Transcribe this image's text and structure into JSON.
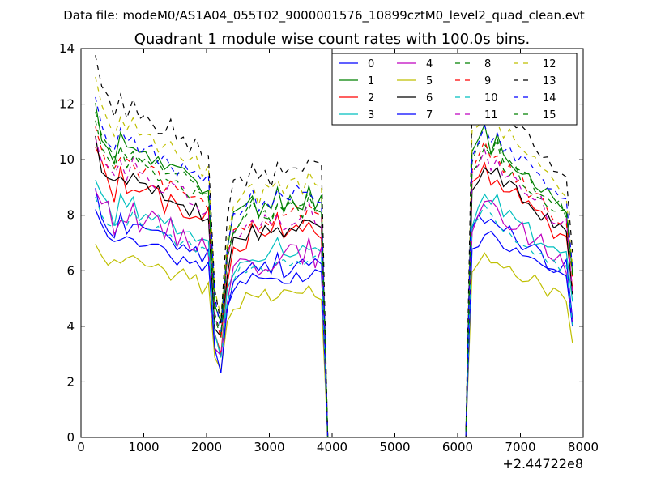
{
  "chart_data": {
    "type": "line",
    "suptitle": "Data file: modeM0/AS1A04_055T02_9000001576_10899cztM0_level2_quad_clean.evt",
    "title": "Quadrant 1 module wise count rates with 100.0s bins.",
    "xlabel": "",
    "ylabel": "",
    "x_offset_label": "+2.44722e8",
    "xlim": [
      0,
      8000
    ],
    "ylim": [
      0,
      14
    ],
    "x_ticks": [
      0,
      1000,
      2000,
      3000,
      4000,
      5000,
      6000,
      7000,
      8000
    ],
    "y_ticks": [
      0,
      2,
      4,
      6,
      8,
      10,
      12,
      14
    ],
    "legend_position": "top-right",
    "x": [
      230,
      330,
      430,
      530,
      630,
      730,
      830,
      930,
      1030,
      1130,
      1230,
      1330,
      1430,
      1530,
      1630,
      1730,
      1830,
      1930,
      2030,
      2130,
      2230,
      2330,
      2430,
      2530,
      2630,
      2730,
      2830,
      2930,
      3030,
      3130,
      3230,
      3330,
      3430,
      3530,
      3630,
      3730,
      3830,
      3930,
      4030,
      4130,
      4230,
      4330,
      4430,
      4530,
      4630,
      4730,
      4830,
      4930,
      5030,
      5130,
      5230,
      5330,
      5430,
      5530,
      5630,
      5730,
      5830,
      5930,
      6030,
      6130,
      6230,
      6330,
      6430,
      6530,
      6630,
      6730,
      6830,
      6930,
      7030,
      7130,
      7230,
      7330,
      7430,
      7530,
      7630,
      7730,
      7830
    ],
    "base_profile": [
      10.6,
      9.8,
      9.4,
      9.0,
      9.6,
      9.2,
      9.5,
      9.1,
      9.3,
      9.0,
      8.8,
      8.6,
      8.7,
      8.4,
      8.5,
      8.2,
      8.3,
      7.9,
      8.0,
      4.2,
      3.4,
      6.0,
      7.0,
      7.2,
      7.3,
      7.6,
      7.2,
      7.5,
      7.3,
      7.8,
      7.4,
      7.6,
      7.7,
      7.5,
      7.9,
      7.6,
      7.5,
      0.0,
      0.0,
      0.0,
      0.0,
      0.0,
      0.0,
      0.0,
      0.0,
      0.0,
      0.0,
      0.0,
      0.0,
      0.0,
      0.0,
      0.0,
      0.0,
      0.0,
      0.0,
      0.0,
      0.0,
      0.0,
      0.0,
      0.0,
      9.0,
      9.4,
      9.8,
      9.4,
      9.6,
      9.2,
      9.0,
      8.8,
      8.6,
      8.4,
      8.2,
      8.1,
      7.8,
      7.6,
      7.5,
      7.4,
      5.2
    ],
    "series": [
      {
        "name": "0",
        "color": "#0000ff",
        "style": "solid",
        "scale": 0.82,
        "jitter": 0.35,
        "seed": 11
      },
      {
        "name": "1",
        "color": "#008000",
        "style": "solid",
        "scale": 1.12,
        "jitter": 0.35,
        "seed": 12
      },
      {
        "name": "2",
        "color": "#ff0000",
        "style": "solid",
        "scale": 0.98,
        "jitter": 0.45,
        "seed": 13
      },
      {
        "name": "3",
        "color": "#00bfbf",
        "style": "solid",
        "scale": 0.88,
        "jitter": 0.35,
        "seed": 14
      },
      {
        "name": "4",
        "color": "#bf00bf",
        "style": "solid",
        "scale": 0.86,
        "jitter": 0.45,
        "seed": 15
      },
      {
        "name": "5",
        "color": "#bfbf00",
        "style": "solid",
        "scale": 0.68,
        "jitter": 0.3,
        "seed": 16
      },
      {
        "name": "6",
        "color": "#000000",
        "style": "solid",
        "scale": 1.0,
        "jitter": 0.3,
        "seed": 17
      },
      {
        "name": "7",
        "color": "#0000ff",
        "style": "solid",
        "scale": 0.76,
        "jitter": 0.3,
        "seed": 18
      },
      {
        "name": "8",
        "color": "#008000",
        "style": "dashed",
        "scale": 1.1,
        "jitter": 0.3,
        "seed": 19
      },
      {
        "name": "9",
        "color": "#ff0000",
        "style": "dashed",
        "scale": 1.06,
        "jitter": 0.3,
        "seed": 20
      },
      {
        "name": "10",
        "color": "#00bfbf",
        "style": "dashed",
        "scale": 0.83,
        "jitter": 0.3,
        "seed": 21
      },
      {
        "name": "11",
        "color": "#bf00bf",
        "style": "dashed",
        "scale": 1.04,
        "jitter": 0.3,
        "seed": 22
      },
      {
        "name": "12",
        "color": "#bfbf00",
        "style": "dashed",
        "scale": 1.2,
        "jitter": 0.3,
        "seed": 23
      },
      {
        "name": "13",
        "color": "#000000",
        "style": "dashed",
        "scale": 1.28,
        "jitter": 0.35,
        "seed": 24
      },
      {
        "name": "14",
        "color": "#0000ff",
        "style": "dashed",
        "scale": 1.15,
        "jitter": 0.3,
        "seed": 25
      },
      {
        "name": "15",
        "color": "#008000",
        "style": "dashed",
        "scale": 1.08,
        "jitter": 0.3,
        "seed": 26
      }
    ]
  }
}
